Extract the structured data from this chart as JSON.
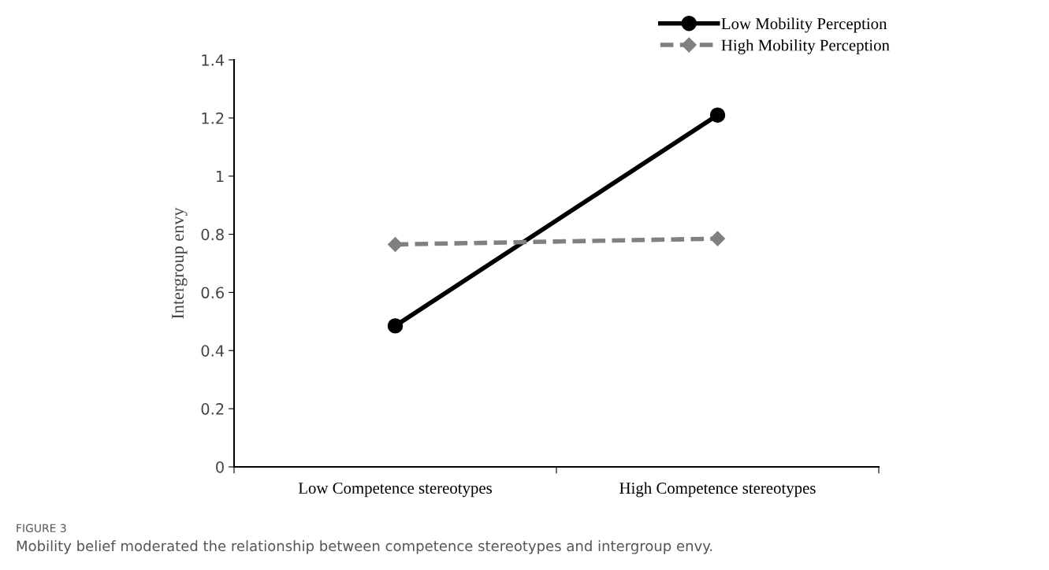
{
  "chart_data": {
    "type": "line",
    "ylabel": "Intergroup envy",
    "categories": [
      "Low Competence stereotypes",
      "High Competence stereotypes"
    ],
    "series": [
      {
        "name": "Low Mobility Perception",
        "color": "#000000",
        "values": [
          0.485,
          1.21
        ],
        "marker": "circle",
        "line_style": "solid"
      },
      {
        "name": "High Mobility Perception",
        "color": "#808080",
        "values": [
          0.765,
          0.785
        ],
        "marker": "diamond",
        "line_style": "dashed"
      }
    ],
    "ylim": [
      0,
      1.4
    ],
    "yticks": [
      0,
      0.2,
      0.4,
      0.6,
      0.8,
      1,
      1.2,
      1.4
    ],
    "grid": false,
    "legend": "top right",
    "annotations": [
      "FIGURE 3",
      "Mobility belief moderated the relationship between competence stereotypes and intergroup envy."
    ]
  }
}
